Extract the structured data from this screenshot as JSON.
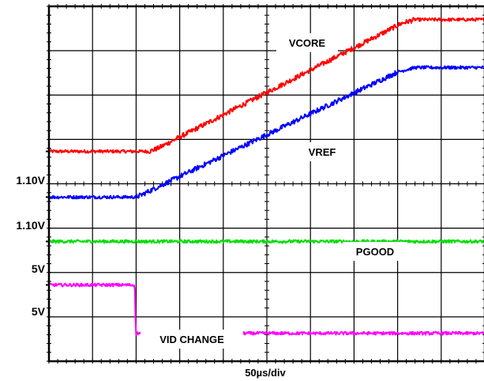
{
  "chart_data": {
    "type": "line",
    "title": "",
    "xlabel": "50µs/div",
    "ylabel": "",
    "grid": true,
    "divisions": {
      "x": 10,
      "y": 8
    },
    "xlim": [
      0,
      10
    ],
    "ylim": [
      0,
      8
    ],
    "channels": [
      {
        "label": "1.10V",
        "trace": "vcore",
        "ref_level_div": 4.73
      },
      {
        "label": "1.10V",
        "trace": "vref",
        "ref_level_div": 3.7
      },
      {
        "label": "5V",
        "trace": "pgood",
        "ref_level_div": 2.7
      },
      {
        "label": "5V",
        "trace": "vid",
        "ref_level_div": 1.72
      }
    ],
    "series": [
      {
        "name": "VCORE",
        "color": "#ff0000",
        "x": [
          0,
          2.3,
          2.5,
          8.1,
          8.4,
          10
        ],
        "y": [
          4.73,
          4.73,
          4.8,
          7.62,
          7.7,
          7.7
        ]
      },
      {
        "name": "VREF",
        "color": "#0000ff",
        "x": [
          0,
          2.0,
          2.1,
          8.0,
          8.4,
          10
        ],
        "y": [
          3.7,
          3.7,
          3.74,
          6.52,
          6.62,
          6.62
        ]
      },
      {
        "name": "PGOOD",
        "color": "#00dd00",
        "x": [
          0,
          10
        ],
        "y": [
          2.7,
          2.7
        ]
      },
      {
        "name": "VID CHANGE",
        "color": "#ff00ff",
        "x": [
          0,
          1.97,
          1.99,
          10
        ],
        "y": [
          1.72,
          1.72,
          0.63,
          0.63
        ]
      }
    ]
  }
}
